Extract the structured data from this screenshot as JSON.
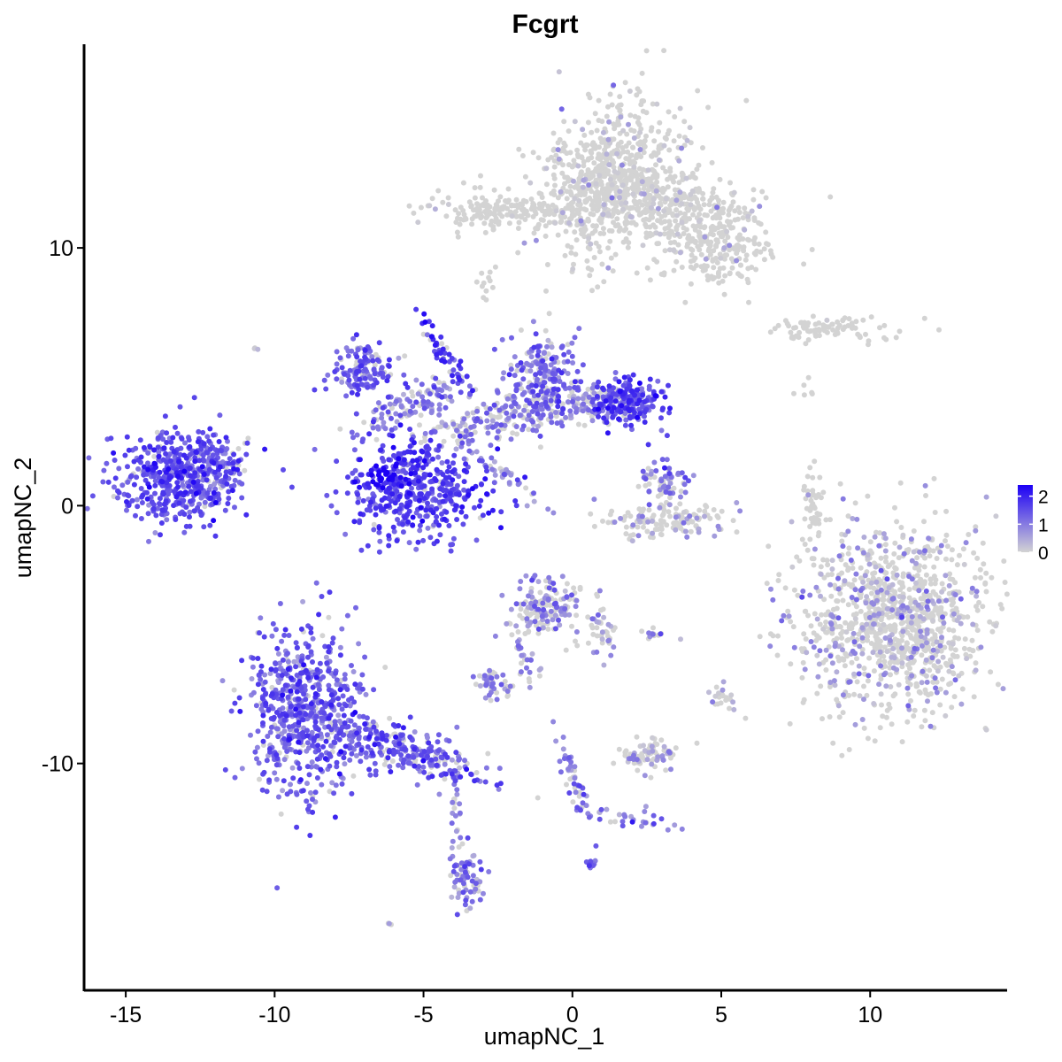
{
  "chart_data": {
    "type": "scatter",
    "title": "Fcgrt",
    "xlabel": "umapNC_1",
    "ylabel": "umapNC_2",
    "xlim": [
      -16.4,
      14.6
    ],
    "ylim": [
      -18.8,
      17.9
    ],
    "x_ticks": [
      -15,
      -10,
      -5,
      0,
      5,
      10
    ],
    "x_tick_labels": [
      "-15",
      "-10",
      "-5",
      "0",
      "5",
      "10"
    ],
    "y_ticks": [
      -10,
      0,
      10
    ],
    "y_tick_labels": [
      "-10",
      "0",
      "10"
    ],
    "grid": false,
    "legend": {
      "placement": "right",
      "type": "colorbar",
      "ticks": [
        0,
        1,
        2
      ],
      "tick_labels": [
        "0",
        "1",
        "2"
      ],
      "range": [
        0,
        2.4
      ],
      "low_color": "#D3D3D3",
      "high_color": "#1C00F5"
    },
    "clusters": [
      {
        "center": [
          1.2,
          12.7
        ],
        "spread": [
          1.1,
          1.6
        ],
        "rotation": -25,
        "count": 650,
        "expr": 0.25,
        "prob": 0.1
      },
      {
        "center": [
          3.6,
          11.6
        ],
        "spread": [
          1.6,
          0.7
        ],
        "rotation": -20,
        "count": 350,
        "expr": 0.25,
        "prob": 0.08
      },
      {
        "center": [
          4.8,
          9.8
        ],
        "spread": [
          0.9,
          0.7
        ],
        "rotation": 0,
        "count": 150,
        "expr": 0.2,
        "prob": 0.05
      },
      {
        "center": [
          -1.5,
          11.4
        ],
        "spread": [
          1.5,
          0.3
        ],
        "rotation": -4,
        "count": 150,
        "expr": 0.2,
        "prob": 0.06
      },
      {
        "center": [
          -3.0,
          11.5
        ],
        "spread": [
          0.6,
          0.5
        ],
        "rotation": 0,
        "count": 60,
        "expr": 0.2,
        "prob": 0.06
      },
      {
        "center": [
          -2.9,
          8.8
        ],
        "spread": [
          0.2,
          0.3
        ],
        "rotation": 0,
        "count": 12,
        "expr": 0.1,
        "prob": 0
      },
      {
        "center": [
          9.1,
          6.9
        ],
        "spread": [
          1.1,
          0.2
        ],
        "rotation": 0,
        "count": 60,
        "expr": 0.3,
        "prob": 0.05
      },
      {
        "center": [
          7.8,
          6.7
        ],
        "spread": [
          0.6,
          0.2
        ],
        "rotation": 0,
        "count": 25,
        "expr": 0.2,
        "prob": 0
      },
      {
        "center": [
          7.8,
          4.6
        ],
        "spread": [
          0.2,
          0.3
        ],
        "rotation": 0,
        "count": 6,
        "expr": 0.1,
        "prob": 0
      },
      {
        "center": [
          -13.2,
          1.2
        ],
        "spread": [
          1.0,
          0.9
        ],
        "rotation": 0,
        "count": 480,
        "expr": 1.5,
        "prob": 0.95
      },
      {
        "center": [
          -12.0,
          1.6
        ],
        "spread": [
          0.6,
          0.6
        ],
        "rotation": 0,
        "count": 80,
        "expr": 1.2,
        "prob": 0.85
      },
      {
        "center": [
          -5.3,
          0.6
        ],
        "spread": [
          1.2,
          1.0
        ],
        "rotation": 0,
        "count": 460,
        "expr": 1.6,
        "prob": 0.95
      },
      {
        "center": [
          -6.1,
          1.2
        ],
        "spread": [
          0.4,
          0.3
        ],
        "rotation": 0,
        "count": 40,
        "expr": 2.3,
        "prob": 1
      },
      {
        "center": [
          -7.0,
          5.3
        ],
        "spread": [
          0.6,
          0.5
        ],
        "rotation": 0,
        "count": 130,
        "expr": 1.3,
        "prob": 0.9
      },
      {
        "center": [
          -5.5,
          3.9
        ],
        "spread": [
          1.2,
          0.35
        ],
        "rotation": 25,
        "count": 120,
        "expr": 1.1,
        "prob": 0.75
      },
      {
        "center": [
          -4.4,
          6.0
        ],
        "spread": [
          0.15,
          0.8
        ],
        "rotation": 30,
        "count": 50,
        "expr": 1.8,
        "prob": 0.9
      },
      {
        "center": [
          -2.5,
          3.4
        ],
        "spread": [
          1.4,
          0.45
        ],
        "rotation": 15,
        "count": 200,
        "expr": 1.0,
        "prob": 0.6
      },
      {
        "center": [
          -0.9,
          5.0
        ],
        "spread": [
          0.6,
          0.8
        ],
        "rotation": 0,
        "count": 200,
        "expr": 1.2,
        "prob": 0.8
      },
      {
        "center": [
          0.7,
          4.0
        ],
        "spread": [
          0.8,
          0.4
        ],
        "rotation": 0,
        "count": 130,
        "expr": 1.0,
        "prob": 0.65
      },
      {
        "center": [
          1.9,
          4.1
        ],
        "spread": [
          0.6,
          0.5
        ],
        "rotation": 0,
        "count": 190,
        "expr": 1.6,
        "prob": 0.95
      },
      {
        "center": [
          -2.5,
          1.3
        ],
        "spread": [
          0.9,
          0.15
        ],
        "rotation": -40,
        "count": 35,
        "expr": 0.9,
        "prob": 0.65
      },
      {
        "center": [
          3.1,
          0.9
        ],
        "spread": [
          0.4,
          0.4
        ],
        "rotation": 0,
        "count": 70,
        "expr": 1.1,
        "prob": 0.7
      },
      {
        "center": [
          3.1,
          -0.6
        ],
        "spread": [
          1.1,
          0.35
        ],
        "rotation": 0,
        "count": 130,
        "expr": 0.6,
        "prob": 0.3
      },
      {
        "center": [
          8.1,
          0.2
        ],
        "spread": [
          0.15,
          0.7
        ],
        "rotation": 0,
        "count": 45,
        "expr": 0.2,
        "prob": 0.05
      },
      {
        "center": [
          10.8,
          -4.5
        ],
        "spread": [
          1.6,
          1.8
        ],
        "rotation": 0,
        "count": 1100,
        "expr": 0.6,
        "prob": 0.26
      },
      {
        "center": [
          -9.0,
          -8.0
        ],
        "spread": [
          1.0,
          1.6
        ],
        "rotation": 0,
        "count": 650,
        "expr": 1.3,
        "prob": 0.95
      },
      {
        "center": [
          -5.5,
          -9.6
        ],
        "spread": [
          1.3,
          0.45
        ],
        "rotation": -22,
        "count": 250,
        "expr": 1.4,
        "prob": 0.85
      },
      {
        "center": [
          -3.6,
          -14.5
        ],
        "spread": [
          0.3,
          0.6
        ],
        "rotation": 0,
        "count": 60,
        "expr": 1.0,
        "prob": 0.8
      },
      {
        "center": [
          -3.9,
          -12.2
        ],
        "spread": [
          0.15,
          1.2
        ],
        "rotation": 0,
        "count": 30,
        "expr": 0.8,
        "prob": 0.6
      },
      {
        "center": [
          -0.9,
          -4.0
        ],
        "spread": [
          0.6,
          0.6
        ],
        "rotation": 0,
        "count": 150,
        "expr": 0.9,
        "prob": 0.6
      },
      {
        "center": [
          0.9,
          -4.8
        ],
        "spread": [
          0.25,
          0.7
        ],
        "rotation": 0,
        "count": 40,
        "expr": 0.8,
        "prob": 0.4
      },
      {
        "center": [
          -1.5,
          -6.0
        ],
        "spread": [
          0.2,
          0.8
        ],
        "rotation": 20,
        "count": 30,
        "expr": 0.8,
        "prob": 0.6
      },
      {
        "center": [
          -2.6,
          -6.9
        ],
        "spread": [
          0.3,
          0.3
        ],
        "rotation": 0,
        "count": 45,
        "expr": 0.9,
        "prob": 0.7
      },
      {
        "center": [
          2.6,
          -9.6
        ],
        "spread": [
          0.5,
          0.3
        ],
        "rotation": 0,
        "count": 80,
        "expr": 0.7,
        "prob": 0.4
      },
      {
        "center": [
          0.0,
          -10.5
        ],
        "spread": [
          0.15,
          1.0
        ],
        "rotation": 15,
        "count": 40,
        "expr": 1.0,
        "prob": 0.8
      },
      {
        "center": [
          1.6,
          -12.1
        ],
        "spread": [
          1.0,
          0.15
        ],
        "rotation": -10,
        "count": 35,
        "expr": 1.0,
        "prob": 0.8
      },
      {
        "center": [
          2.8,
          -5.0
        ],
        "spread": [
          0.3,
          0.1
        ],
        "rotation": 0,
        "count": 12,
        "expr": 1.0,
        "prob": 0.8
      },
      {
        "center": [
          5.0,
          -7.4
        ],
        "spread": [
          0.25,
          0.25
        ],
        "rotation": 0,
        "count": 20,
        "expr": 0.5,
        "prob": 0.4
      },
      {
        "center": [
          0.6,
          -13.9
        ],
        "spread": [
          0.1,
          0.1
        ],
        "rotation": 0,
        "count": 8,
        "expr": 1.3,
        "prob": 1
      },
      {
        "center": [
          -6.1,
          -16.2
        ],
        "spread": [
          0.1,
          0.1
        ],
        "rotation": 0,
        "count": 4,
        "expr": 0.5,
        "prob": 0.5
      },
      {
        "center": [
          -10.6,
          6.0
        ],
        "spread": [
          0.1,
          0.1
        ],
        "rotation": 0,
        "count": 3,
        "expr": 0.5,
        "prob": 0.7
      }
    ]
  }
}
